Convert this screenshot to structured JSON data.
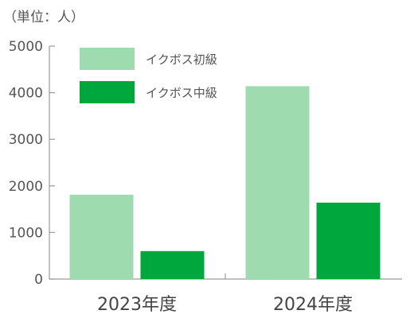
{
  "chart_data": {
    "type": "bar",
    "unit_note": "（単位：人）",
    "categories": [
      "2023年度",
      "2024年度"
    ],
    "series": [
      {
        "name": "イクボス初級",
        "values": [
          1810,
          4140
        ],
        "color": "#9edcb0"
      },
      {
        "name": "イクボス中級",
        "values": [
          600,
          1640
        ],
        "color": "#00a73c"
      }
    ],
    "ylim": [
      0,
      5000
    ],
    "yticks": [
      0,
      1000,
      2000,
      3000,
      4000,
      5000
    ],
    "grid": false,
    "legend_position": "top-left"
  }
}
